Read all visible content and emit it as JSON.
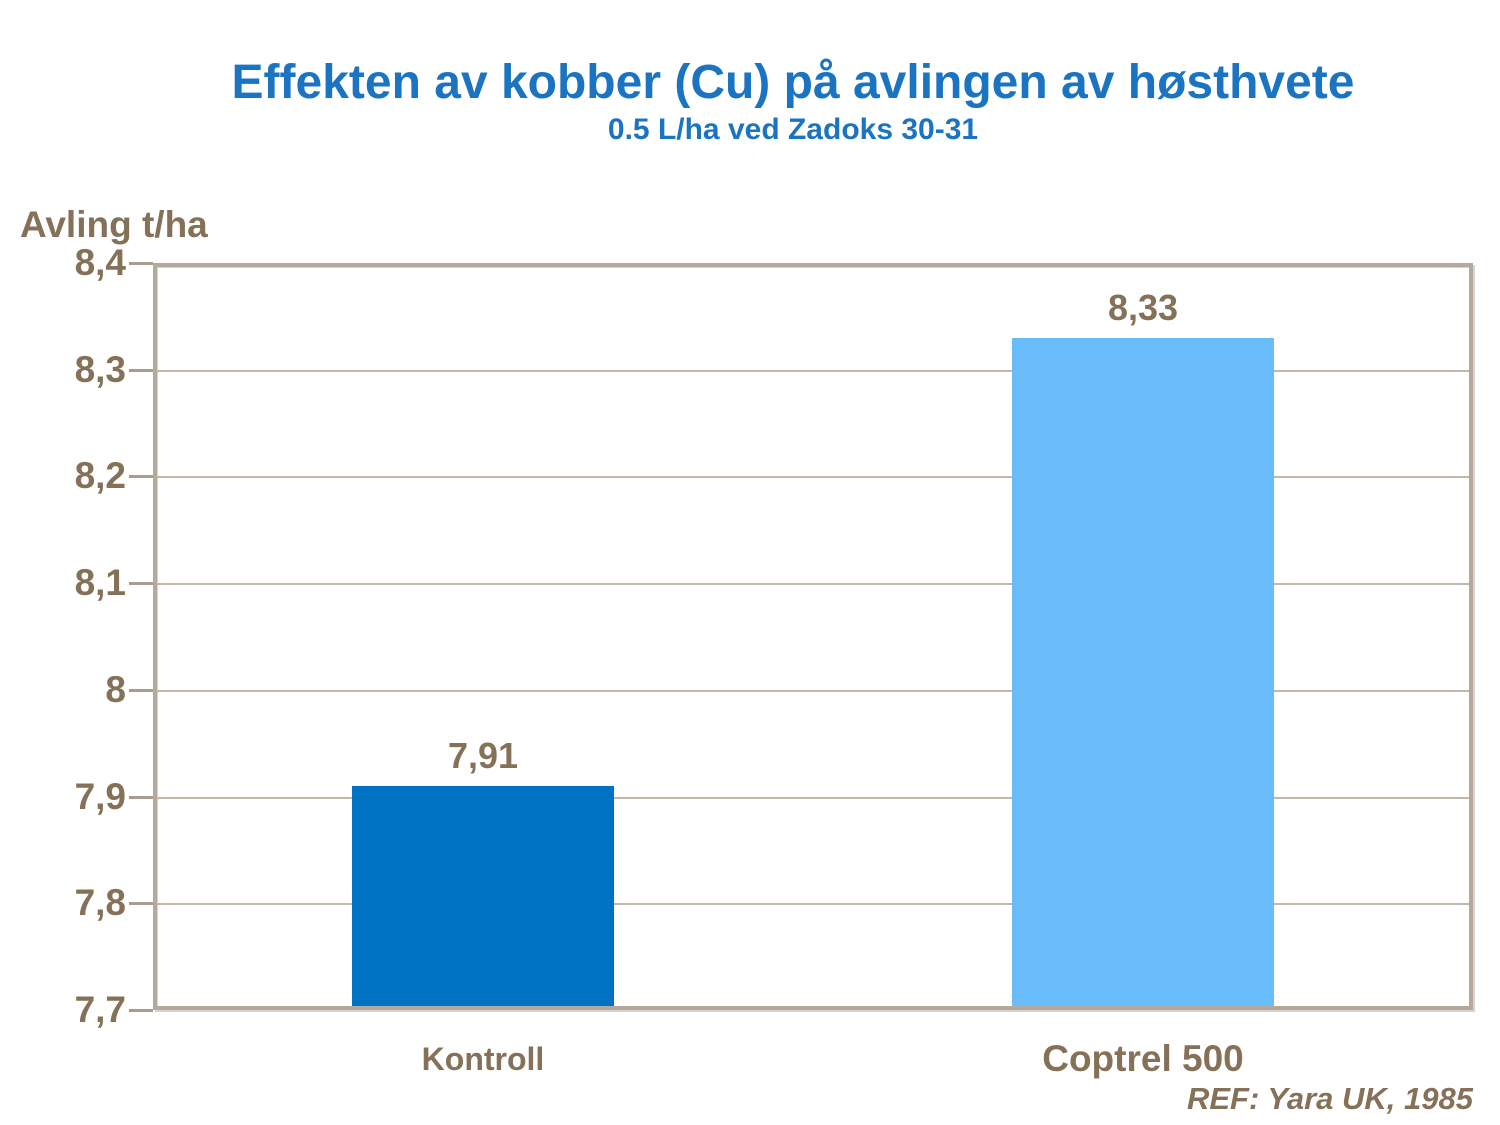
{
  "title": "Effekten av kobber (Cu) på avlingen av høsthvete",
  "subtitle": "0.5 L/ha ved Zadoks 30-31",
  "y_axis_title": "Avling t/ha",
  "ref_note": "REF: Yara UK, 1985",
  "colors": {
    "title_blue": "#1b74c2",
    "text_brown": "#857157",
    "bar_kontroll": "#0072c3",
    "bar_coptrel": "#69bcfa",
    "frame_taupe": "#b3a99e",
    "gridline_taupe": "#c1b7ac"
  },
  "chart_data": {
    "type": "bar",
    "title": "Effekten av kobber (Cu) på avlingen av høsthvete",
    "subtitle": "0.5 L/ha ved Zadoks 30-31",
    "categories": [
      "Kontroll",
      "Coptrel 500"
    ],
    "values": [
      7.91,
      8.33
    ],
    "value_labels": [
      "7,91",
      "8,33"
    ],
    "bar_colors": [
      "#0072c3",
      "#69bcfa"
    ],
    "xlabel": "",
    "ylabel": "Avling t/ha",
    "ylim": [
      7.7,
      8.4
    ],
    "yticks": [
      8.4,
      8.3,
      8.2,
      8.1,
      8.0,
      7.9,
      7.8,
      7.7
    ],
    "ytick_labels": [
      "8,4",
      "8,3",
      "8,2",
      "8,1",
      "8",
      "7,9",
      "7,8",
      "7,7"
    ],
    "decimal_separator": ",",
    "grid": true,
    "legend": false,
    "annotation": "REF: Yara UK, 1985"
  }
}
